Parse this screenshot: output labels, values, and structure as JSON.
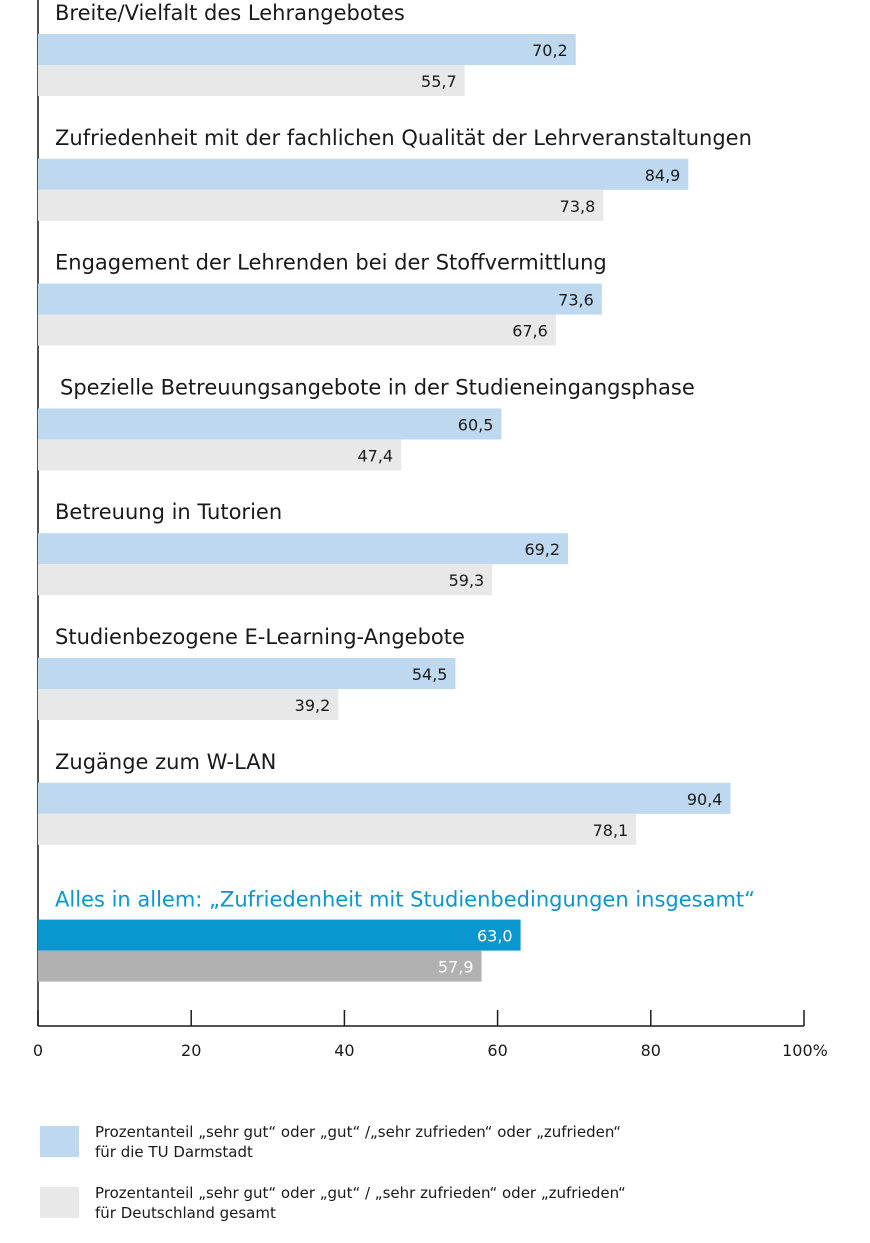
{
  "chart_data": {
    "type": "bar",
    "orientation": "horizontal",
    "categories": [
      "Breite/Vielfalt des Lehrangebotes",
      "Zufriedenheit mit der fachlichen Qualität der Lehrveranstaltungen",
      "Engagement der Lehrenden bei der Stoffvermittlung",
      "Spezielle Betreuungsangebote in der Studieneingangsphase",
      "Betreuung in Tutorien",
      "Studienbezogene E-Learning-Angebote",
      "Zugänge zum W-LAN",
      "Alles in allem: „Zufriedenheit mit Studienbedingungen insgesamt“"
    ],
    "highlight_category_index": 7,
    "series": [
      {
        "name": "TU Darmstadt",
        "values": [
          70.2,
          84.9,
          73.6,
          60.5,
          69.2,
          54.5,
          90.4,
          63.0
        ],
        "value_labels": [
          "70,2",
          "84,9",
          "73,6",
          "60,5",
          "69,2",
          "54,5",
          "90,4",
          "63,0"
        ],
        "color": "#bdd8ef",
        "highlight_color": "#0a97cf"
      },
      {
        "name": "Deutschland gesamt",
        "values": [
          55.7,
          73.8,
          67.6,
          47.4,
          59.3,
          39.2,
          78.1,
          57.9
        ],
        "value_labels": [
          "55,7",
          "73,8",
          "67,6",
          "47,4",
          "59,3",
          "39,2",
          "78,1",
          "57,9"
        ],
        "color": "#e8e8e8",
        "highlight_color": "#b1b1b1"
      }
    ],
    "xlim": [
      0,
      100
    ],
    "xticks": [
      0,
      20,
      40,
      60,
      80,
      100
    ],
    "xtick_labels": [
      "0",
      "20",
      "40",
      "60",
      "80",
      "100%"
    ],
    "title": "",
    "xlabel": "",
    "ylabel": "",
    "legend_position": "bottom"
  },
  "legend": {
    "items": [
      {
        "line1": "Prozentanteil „sehr gut“ oder „gut“ /„sehr zufrieden“ oder „zufrieden“",
        "line2": "für die TU Darmstadt",
        "color": "#bdd8ef"
      },
      {
        "line1": "Prozentanteil „sehr gut“ oder „gut“ / „sehr zufrieden“ oder „zufrieden“",
        "line2": "für Deutschland gesamt",
        "color": "#e8e8e8"
      }
    ]
  }
}
